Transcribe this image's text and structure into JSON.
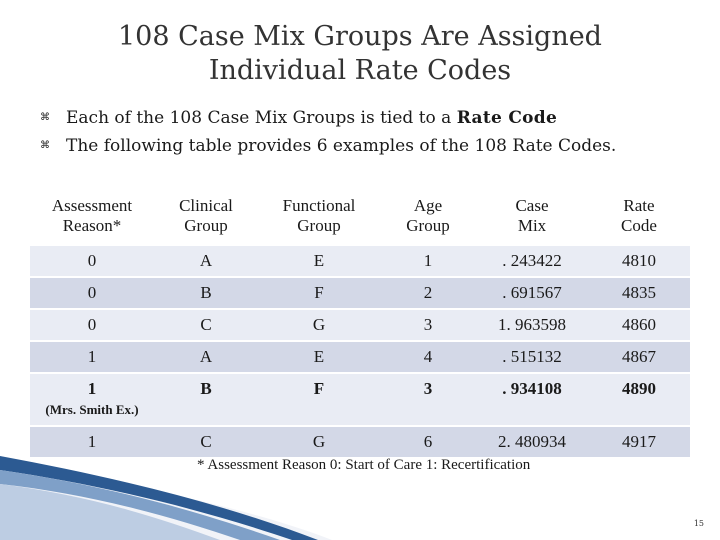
{
  "title": {
    "line1": "108 Case Mix Groups Are Assigned",
    "line2": "Individual Rate Codes"
  },
  "bullets": [
    {
      "text": "Each of the 108 Case Mix Groups is tied to a ",
      "emphasis": "Rate Code"
    },
    {
      "text": "The following table provides 6 examples of the 108 Rate Codes."
    }
  ],
  "table": {
    "headers": [
      [
        "Assessment",
        "Reason*"
      ],
      [
        "Clinical",
        "Group"
      ],
      [
        "Functional",
        "Group"
      ],
      [
        "Age",
        "Group"
      ],
      [
        "Case",
        "Mix"
      ],
      [
        "Rate",
        "Code"
      ]
    ],
    "rows": [
      {
        "cells": [
          "0",
          "A",
          "E",
          "1",
          ". 243422",
          "4810"
        ]
      },
      {
        "cells": [
          "0",
          "B",
          "F",
          "2",
          ". 691567",
          "4835"
        ]
      },
      {
        "cells": [
          "0",
          "C",
          "G",
          "3",
          "1. 963598",
          "4860"
        ]
      },
      {
        "cells": [
          "1",
          "A",
          "E",
          "4",
          ". 515132",
          "4867"
        ]
      },
      {
        "cells": [
          "1",
          "B",
          "F",
          "3",
          ". 934108",
          "4890"
        ],
        "note": "(Mrs. Smith Ex.)"
      },
      {
        "cells": [
          "1",
          "C",
          "G",
          "6",
          "2. 480934",
          "4917"
        ]
      }
    ]
  },
  "footnote": "* Assessment Reason 0: Start of Care 1: Recertification",
  "page_number": "15",
  "bullet_icon": "bullet-glyph"
}
